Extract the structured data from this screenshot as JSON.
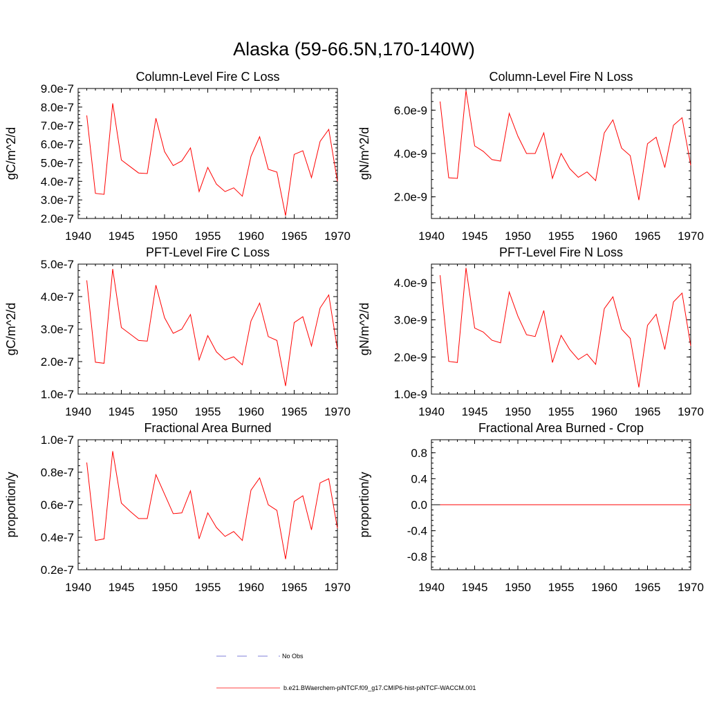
{
  "title": "Alaska (59-66.5N,170-140W)",
  "colors": {
    "series": "#ff0000",
    "obs": "#5555cc",
    "frame": "#000000"
  },
  "legend": {
    "obs_label": "No Obs",
    "model_label": "b.e21.BWaerchem-piNTCF.f09_g17.CMIP6-hist-piNTCF-WACCM.001"
  },
  "chart_data": [
    {
      "type": "line",
      "title": "Column-Level Fire C Loss",
      "ylabel": "gC/m^2/d",
      "xlim": [
        1940,
        1970
      ],
      "ylim": [
        2e-07,
        9e-07
      ],
      "xticks": [
        1940,
        1945,
        1950,
        1955,
        1960,
        1965,
        1970
      ],
      "xtick_labels": [
        "1940",
        "1945",
        "1950",
        "1955",
        "1960",
        "1965",
        "1970"
      ],
      "yticks": [
        2e-07,
        3e-07,
        4e-07,
        5e-07,
        6e-07,
        7e-07,
        8e-07,
        9e-07
      ],
      "ytick_labels": [
        "2.0e-7",
        "3.0e-7",
        "4.0e-7",
        "5.0e-7",
        "6.0e-7",
        "7.0e-7",
        "8.0e-7",
        "9.0e-7"
      ],
      "x": [
        1941,
        1942,
        1943,
        1944,
        1945,
        1946,
        1947,
        1948,
        1949,
        1950,
        1951,
        1952,
        1953,
        1954,
        1955,
        1956,
        1957,
        1958,
        1959,
        1960,
        1961,
        1962,
        1963,
        1964,
        1965,
        1966,
        1967,
        1968,
        1969,
        1970
      ],
      "values": [
        7.55e-07,
        3.35e-07,
        3.3e-07,
        8.2e-07,
        5.15e-07,
        4.8e-07,
        4.45e-07,
        4.42e-07,
        7.4e-07,
        5.6e-07,
        4.85e-07,
        5.1e-07,
        5.8e-07,
        3.45e-07,
        4.75e-07,
        3.85e-07,
        3.45e-07,
        3.65e-07,
        3.2e-07,
        5.35e-07,
        6.4e-07,
        4.65e-07,
        4.5e-07,
        2.15e-07,
        5.45e-07,
        5.65e-07,
        4.2e-07,
        6.15e-07,
        6.8e-07,
        4e-07
      ]
    },
    {
      "type": "line",
      "title": "Column-Level Fire N Loss",
      "ylabel": "gN/m^2/d",
      "xlim": [
        1940,
        1970
      ],
      "ylim": [
        1e-09,
        7e-09
      ],
      "xticks": [
        1940,
        1945,
        1950,
        1955,
        1960,
        1965,
        1970
      ],
      "xtick_labels": [
        "1940",
        "1945",
        "1950",
        "1955",
        "1960",
        "1965",
        "1970"
      ],
      "yticks": [
        2e-09,
        4e-09,
        6e-09
      ],
      "ytick_labels": [
        "2.0e-9",
        "4.0e-9",
        "6.0e-9"
      ],
      "x": [
        1941,
        1942,
        1943,
        1944,
        1945,
        1946,
        1947,
        1948,
        1949,
        1950,
        1951,
        1952,
        1953,
        1954,
        1955,
        1956,
        1957,
        1958,
        1959,
        1960,
        1961,
        1962,
        1963,
        1964,
        1965,
        1966,
        1967,
        1968,
        1969,
        1970
      ],
      "values": [
        6.4e-09,
        2.88e-09,
        2.85e-09,
        6.9e-09,
        4.35e-09,
        4.1e-09,
        3.72e-09,
        3.65e-09,
        5.85e-09,
        4.8e-09,
        4e-09,
        4e-09,
        4.95e-09,
        2.85e-09,
        4e-09,
        3.3e-09,
        2.9e-09,
        3.15e-09,
        2.75e-09,
        4.95e-09,
        5.55e-09,
        4.25e-09,
        3.9e-09,
        1.85e-09,
        4.45e-09,
        4.75e-09,
        3.35e-09,
        5.3e-09,
        5.65e-09,
        3.45e-09
      ]
    },
    {
      "type": "line",
      "title": "PFT-Level Fire C Loss",
      "ylabel": "gC/m^2/d",
      "xlim": [
        1940,
        1970
      ],
      "ylim": [
        1e-07,
        5e-07
      ],
      "xticks": [
        1940,
        1945,
        1950,
        1955,
        1960,
        1965,
        1970
      ],
      "xtick_labels": [
        "1940",
        "1945",
        "1950",
        "1955",
        "1960",
        "1965",
        "1970"
      ],
      "yticks": [
        1e-07,
        2e-07,
        3e-07,
        4e-07,
        5e-07
      ],
      "ytick_labels": [
        "1.0e-7",
        "2.0e-7",
        "3.0e-7",
        "4.0e-7",
        "5.0e-7"
      ],
      "x": [
        1941,
        1942,
        1943,
        1944,
        1945,
        1946,
        1947,
        1948,
        1949,
        1950,
        1951,
        1952,
        1953,
        1954,
        1955,
        1956,
        1957,
        1958,
        1959,
        1960,
        1961,
        1962,
        1963,
        1964,
        1965,
        1966,
        1967,
        1968,
        1969,
        1970
      ],
      "values": [
        4.5e-07,
        1.98e-07,
        1.95e-07,
        4.85e-07,
        3.05e-07,
        2.85e-07,
        2.65e-07,
        2.63e-07,
        4.35e-07,
        3.35e-07,
        2.87e-07,
        3e-07,
        3.45e-07,
        2.05e-07,
        2.8e-07,
        2.3e-07,
        2.05e-07,
        2.15e-07,
        1.9e-07,
        3.25e-07,
        3.8e-07,
        2.77e-07,
        2.65e-07,
        1.25e-07,
        3.2e-07,
        3.38e-07,
        2.48e-07,
        3.65e-07,
        4.05e-07,
        2.38e-07
      ]
    },
    {
      "type": "line",
      "title": "PFT-Level Fire N Loss",
      "ylabel": "gN/m^2/d",
      "xlim": [
        1940,
        1970
      ],
      "ylim": [
        1e-09,
        4.5e-09
      ],
      "xticks": [
        1940,
        1945,
        1950,
        1955,
        1960,
        1965,
        1970
      ],
      "xtick_labels": [
        "1940",
        "1945",
        "1950",
        "1955",
        "1960",
        "1965",
        "1970"
      ],
      "yticks": [
        1e-09,
        2e-09,
        3e-09,
        4e-09
      ],
      "ytick_labels": [
        "1.0e-9",
        "2.0e-9",
        "3.0e-9",
        "4.0e-9"
      ],
      "x": [
        1941,
        1942,
        1943,
        1944,
        1945,
        1946,
        1947,
        1948,
        1949,
        1950,
        1951,
        1952,
        1953,
        1954,
        1955,
        1956,
        1957,
        1958,
        1959,
        1960,
        1961,
        1962,
        1963,
        1964,
        1965,
        1966,
        1967,
        1968,
        1969,
        1970
      ],
      "values": [
        4.2e-09,
        1.88e-09,
        1.85e-09,
        4.4e-09,
        2.78e-09,
        2.67e-09,
        2.45e-09,
        2.38e-09,
        3.75e-09,
        3.1e-09,
        2.6e-09,
        2.55e-09,
        3.25e-09,
        1.85e-09,
        2.58e-09,
        2.2e-09,
        1.93e-09,
        2.08e-09,
        1.8e-09,
        3.3e-09,
        3.62e-09,
        2.75e-09,
        2.5e-09,
        1.18e-09,
        2.85e-09,
        3.15e-09,
        2.2e-09,
        3.48e-09,
        3.72e-09,
        2.3e-09
      ]
    },
    {
      "type": "line",
      "title": "Fractional Area Burned",
      "ylabel": "proportion/y",
      "xlim": [
        1940,
        1970
      ],
      "ylim": [
        2e-08,
        1e-07
      ],
      "xticks": [
        1940,
        1945,
        1950,
        1955,
        1960,
        1965,
        1970
      ],
      "xtick_labels": [
        "1940",
        "1945",
        "1950",
        "1955",
        "1960",
        "1965",
        "1970"
      ],
      "yticks": [
        2e-08,
        4e-08,
        6e-08,
        8e-08,
        1e-07
      ],
      "ytick_labels": [
        "0.2e-7",
        "0.4e-7",
        "0.6e-7",
        "0.8e-7",
        "1.0e-7"
      ],
      "x": [
        1941,
        1942,
        1943,
        1944,
        1945,
        1946,
        1947,
        1948,
        1949,
        1950,
        1951,
        1952,
        1953,
        1954,
        1955,
        1956,
        1957,
        1958,
        1959,
        1960,
        1961,
        1962,
        1963,
        1964,
        1965,
        1966,
        1967,
        1968,
        1969,
        1970
      ],
      "values": [
        8.6e-08,
        3.8e-08,
        3.9e-08,
        9.3e-08,
        6.1e-08,
        5.6e-08,
        5.15e-08,
        5.15e-08,
        7.85e-08,
        6.65e-08,
        5.45e-08,
        5.5e-08,
        6.85e-08,
        3.9e-08,
        5.5e-08,
        4.6e-08,
        4.05e-08,
        4.35e-08,
        3.8e-08,
        6.9e-08,
        7.65e-08,
        6e-08,
        5.65e-08,
        2.65e-08,
        6.2e-08,
        6.55e-08,
        4.45e-08,
        7.35e-08,
        7.6e-08,
        4.55e-08
      ]
    },
    {
      "type": "line",
      "title": "Fractional Area Burned - Crop",
      "ylabel": "proportion/y",
      "xlim": [
        1940,
        1970
      ],
      "ylim": [
        -1.0,
        1.0
      ],
      "xticks": [
        1940,
        1945,
        1950,
        1955,
        1960,
        1965,
        1970
      ],
      "xtick_labels": [
        "1940",
        "1945",
        "1950",
        "1955",
        "1960",
        "1965",
        "1970"
      ],
      "yticks": [
        -0.8,
        -0.4,
        0.0,
        0.4,
        0.8
      ],
      "ytick_labels": [
        "-0.8",
        "-0.4",
        "0.0",
        "0.4",
        "0.8"
      ],
      "x": [
        1941,
        1942,
        1943,
        1944,
        1945,
        1946,
        1947,
        1948,
        1949,
        1950,
        1951,
        1952,
        1953,
        1954,
        1955,
        1956,
        1957,
        1958,
        1959,
        1960,
        1961,
        1962,
        1963,
        1964,
        1965,
        1966,
        1967,
        1968,
        1969,
        1970
      ],
      "values": [
        0,
        0,
        0,
        0,
        0,
        0,
        0,
        0,
        0,
        0,
        0,
        0,
        0,
        0,
        0,
        0,
        0,
        0,
        0,
        0,
        0,
        0,
        0,
        0,
        0,
        0,
        0,
        0,
        0,
        0
      ]
    }
  ]
}
